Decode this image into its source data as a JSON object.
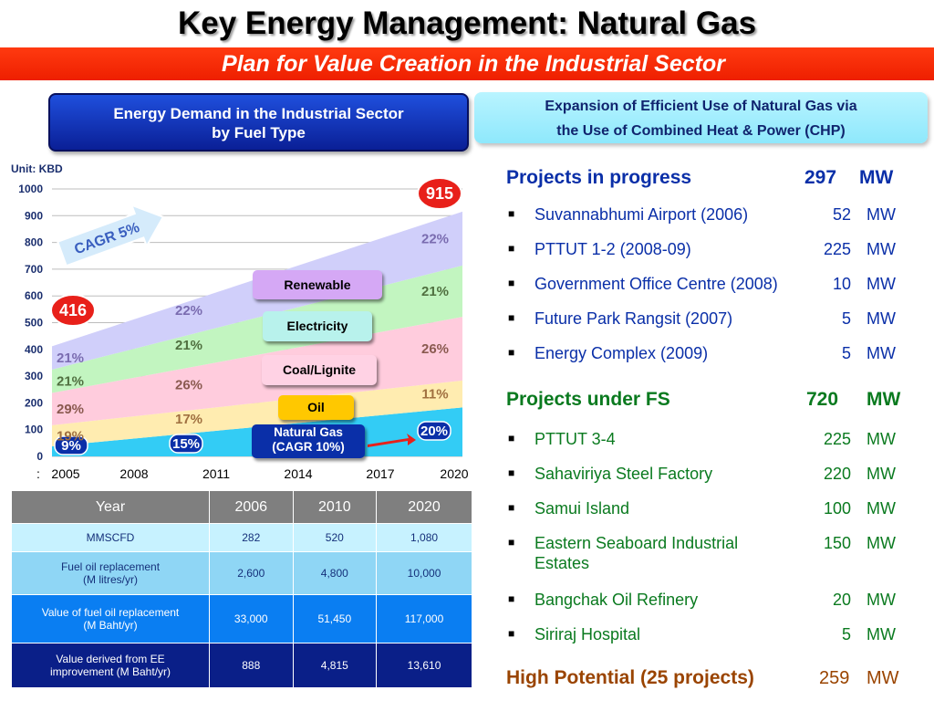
{
  "title": "Key Energy Management: Natural Gas",
  "subtitle": "Plan for Value Creation in the Industrial Sector",
  "left_box": {
    "line1": "Energy Demand in the Industrial Sector",
    "line2": "by Fuel Type"
  },
  "right_box": {
    "line1": "Expansion of Efficient Use of Natural Gas via",
    "line2": "the Use of Combined Heat & Power (CHP)"
  },
  "chart_data": {
    "type": "area",
    "stacked": true,
    "unit": "Unit: KBD",
    "x": [
      2005,
      2008,
      2011,
      2014,
      2017,
      2020
    ],
    "x_tick_labels": [
      "2005",
      "2008",
      "2011",
      "2014",
      "2017",
      "2020"
    ],
    "x_prefix_glyph": ":",
    "ylim": [
      0,
      1000
    ],
    "y_ticks": [
      0,
      100,
      200,
      300,
      400,
      500,
      600,
      700,
      800,
      900,
      1000
    ],
    "grid": true,
    "totals": {
      "start": 416,
      "end": 915
    },
    "start_label": "416",
    "end_label": "915",
    "cagr_label": "CAGR 5%",
    "series": [
      {
        "name": "Natural Gas\n(CAGR 10%)",
        "color": "#33ccf5",
        "share_start": 0.09,
        "share_end": 0.2,
        "labels": [
          "9%",
          "15%",
          "20%"
        ]
      },
      {
        "name": "Oil",
        "color": "#ffecb0",
        "share_start": 0.19,
        "share_end": 0.11,
        "labels": [
          "19%",
          "17%",
          "11%"
        ]
      },
      {
        "name": "Coal/Lignite",
        "color": "#ffccdd",
        "share_start": 0.29,
        "share_end": 0.26,
        "labels": [
          "29%",
          "26%",
          "26%"
        ]
      },
      {
        "name": "Electricity",
        "color": "#c2f5c0",
        "share_start": 0.21,
        "share_end": 0.21,
        "labels": [
          "21%",
          "21%",
          "21%"
        ]
      },
      {
        "name": "Renewable",
        "color": "#d0cffa",
        "share_start": 0.21,
        "share_end": 0.22,
        "labels": [
          "21%",
          "22%",
          "22%"
        ]
      }
    ],
    "legend_callouts": [
      "Renewable",
      "Electricity",
      "Coal/Lignite",
      "Oil",
      "Natural Gas\n(CAGR 10%)"
    ]
  },
  "table": {
    "headers": [
      "Year",
      "2006",
      "2010",
      "2020"
    ],
    "rows": [
      {
        "label": "MMSCFD",
        "values": [
          "282",
          "520",
          "1,080"
        ]
      },
      {
        "label": "Fuel oil replacement\n(M litres/yr)",
        "values": [
          "2,600",
          "4,800",
          "10,000"
        ]
      },
      {
        "label": "Value of fuel oil replacement\n(M Baht/yr)",
        "values": [
          "33,000",
          "51,450",
          "117,000"
        ]
      },
      {
        "label": "Value derived from EE\nimprovement (M Baht/yr)",
        "values": [
          "888",
          "4,815",
          "13,610"
        ]
      }
    ]
  },
  "projects": {
    "in_progress": {
      "heading": "Projects in progress",
      "total": "297",
      "unit": "MW",
      "items": [
        {
          "name": "Suvannabhumi Airport (2006)",
          "value": "52",
          "unit": "MW"
        },
        {
          "name": "PTTUT 1-2 (2008-09)",
          "value": "225",
          "unit": "MW"
        },
        {
          "name": "Government Office Centre (2008)",
          "value": "10",
          "unit": "MW"
        },
        {
          "name": "Future Park Rangsit (2007)",
          "value": "5",
          "unit": "MW"
        },
        {
          "name": "Energy Complex (2009)",
          "value": "5",
          "unit": "MW"
        }
      ]
    },
    "under_fs": {
      "heading": "Projects under FS",
      "total": "720",
      "unit": "MW",
      "items": [
        {
          "name": "PTTUT 3-4",
          "value": "225",
          "unit": "MW"
        },
        {
          "name": "Sahaviriya Steel Factory",
          "value": "220",
          "unit": "MW"
        },
        {
          "name": "Samui Island",
          "value": "100",
          "unit": "MW"
        },
        {
          "name": "Eastern Seaboard Industrial\nEstates",
          "value": "150",
          "unit": "MW"
        },
        {
          "name": "Bangchak Oil Refinery",
          "value": "20",
          "unit": "MW"
        },
        {
          "name": "Siriraj Hospital",
          "value": "5",
          "unit": "MW"
        }
      ]
    },
    "high_potential": {
      "heading": "High Potential (25 projects)",
      "total": "259",
      "unit": "MW"
    }
  },
  "colors": {
    "title_bar": "#ee1f00",
    "blue_box": "#0a1f96",
    "cyan_box": "#9beefc",
    "progress_heading": "#0a2fa8",
    "fs_heading": "#0a7a1f",
    "high_heading": "#9a4400"
  }
}
